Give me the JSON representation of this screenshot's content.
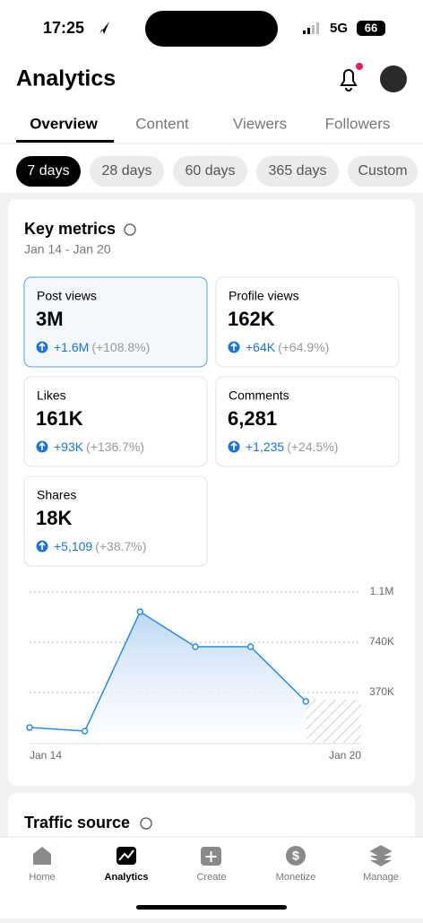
{
  "status_bar": {
    "time": "17:25",
    "network": "5G",
    "battery": "66"
  },
  "header": {
    "title": "Analytics"
  },
  "tabs": [
    "Overview",
    "Content",
    "Viewers",
    "Followers"
  ],
  "date_ranges": [
    "7 days",
    "28 days",
    "60 days",
    "365 days",
    "Custom"
  ],
  "key_metrics": {
    "title": "Key metrics",
    "date_range": "Jan 14 - Jan 20",
    "cards": [
      {
        "label": "Post views",
        "value": "3M",
        "change": "+1.6M",
        "percent": "(+108.8%)"
      },
      {
        "label": "Profile views",
        "value": "162K",
        "change": "+64K",
        "percent": "(+64.9%)"
      },
      {
        "label": "Likes",
        "value": "161K",
        "change": "+93K",
        "percent": "(+136.7%)"
      },
      {
        "label": "Comments",
        "value": "6,281",
        "change": "+1,235",
        "percent": "(+24.5%)"
      },
      {
        "label": "Shares",
        "value": "18K",
        "change": "+5,109",
        "percent": "(+38.7%)"
      }
    ]
  },
  "chart_data": {
    "type": "area",
    "categories": [
      "Jan 14",
      null,
      null,
      null,
      null,
      null,
      "Jan 20"
    ],
    "values": [
      112000,
      86000,
      965000,
      707000,
      707000,
      304000,
      null
    ],
    "ylim": [
      0,
      1110000
    ],
    "yticks": [
      {
        "value": 370000,
        "label": "370K"
      },
      {
        "value": 740000,
        "label": "740K"
      },
      {
        "value": 1110000,
        "label": "1.1M"
      }
    ],
    "color": "#2b8ae8",
    "grid": true
  },
  "traffic_source": {
    "title": "Traffic source"
  },
  "nav": [
    "Home",
    "Analytics",
    "Create",
    "Monetize",
    "Manage"
  ]
}
